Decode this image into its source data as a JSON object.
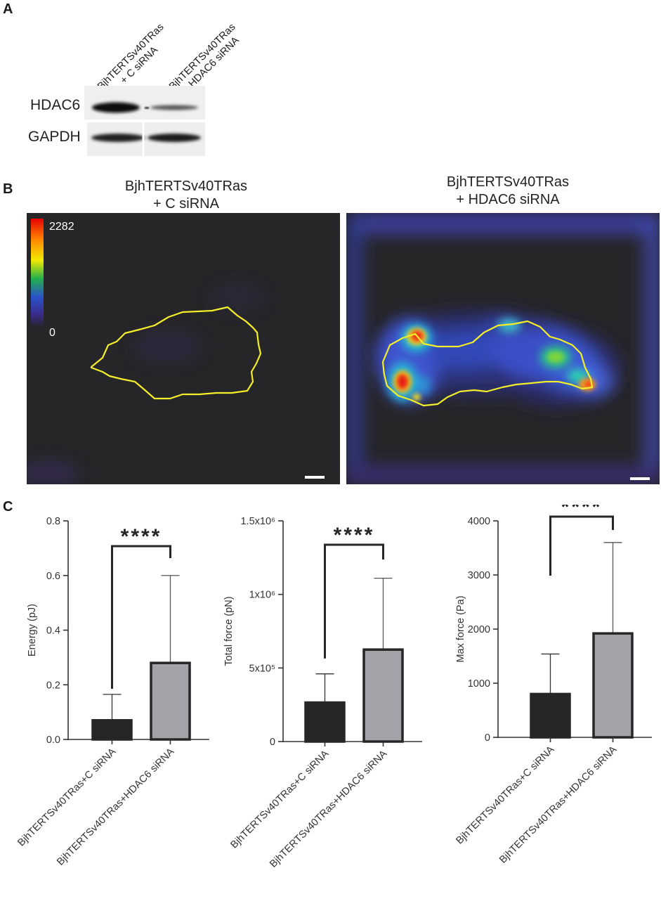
{
  "panels": {
    "a": "A",
    "b": "B",
    "c": "C"
  },
  "western_blot": {
    "lanes": [
      {
        "line1": "BjhTERTSv40TRas",
        "line2": "+ C siRNA"
      },
      {
        "line1": "BjhTERTSv40TRas",
        "line2": "+ HDAC6 siRNA"
      }
    ],
    "bands": [
      "HDAC6",
      "GAPDH"
    ]
  },
  "tfm": {
    "left_title": {
      "line1": "BjhTERTSv40TRas",
      "line2": "+ C siRNA"
    },
    "right_title": {
      "line1": "BjhTERTSv40TRas",
      "line2": "+ HDAC6 siRNA"
    },
    "colorbar_max": "2282",
    "colorbar_min": "0"
  },
  "chart_data": [
    {
      "type": "bar",
      "categories": [
        "BjhTERTSv40TRas+C siRNA",
        "BjhTERTSv40TRas+HDAC6 siRNA"
      ],
      "values": [
        0.07,
        0.28
      ],
      "errors": [
        0.095,
        0.32
      ],
      "ylabel": "Energy (pJ)",
      "ylim": [
        0,
        0.8
      ],
      "yticks": [
        0,
        0.2,
        0.4,
        0.6,
        0.8
      ],
      "ytick_labels": [
        "0.0",
        "0.2",
        "0.4",
        "0.6",
        "0.8"
      ],
      "significance": "****",
      "bar_colors": [
        "#262626",
        "#a2a2a8"
      ]
    },
    {
      "type": "bar",
      "categories": [
        "BjhTERTSv40TRas+C siRNA",
        "BjhTERTSv40TRas+HDAC6 siRNA"
      ],
      "values": [
        265000,
        625000
      ],
      "errors": [
        195000,
        485000
      ],
      "ylabel": "Total force (pN)",
      "ylim": [
        0,
        1500000
      ],
      "yticks": [
        0,
        500000,
        1000000,
        1500000
      ],
      "ytick_labels": [
        "0",
        "5x10⁵",
        "1x10⁶",
        "1.5x10⁶"
      ],
      "significance": "****",
      "bar_colors": [
        "#262626",
        "#a2a2a8"
      ]
    },
    {
      "type": "bar",
      "categories": [
        "BjhTERTSv40TRas+C siRNA",
        "BjhTERTSv40TRas+HDAC6 siRNA"
      ],
      "values": [
        800,
        1920
      ],
      "errors": [
        740,
        1680
      ],
      "ylabel": "Max force (Pa)",
      "ylim": [
        0,
        4000
      ],
      "yticks": [
        0,
        1000,
        2000,
        3000,
        4000
      ],
      "ytick_labels": [
        "0",
        "1000",
        "2000",
        "3000",
        "4000"
      ],
      "significance": "****",
      "bar_colors": [
        "#262626",
        "#a2a2a8"
      ]
    }
  ]
}
